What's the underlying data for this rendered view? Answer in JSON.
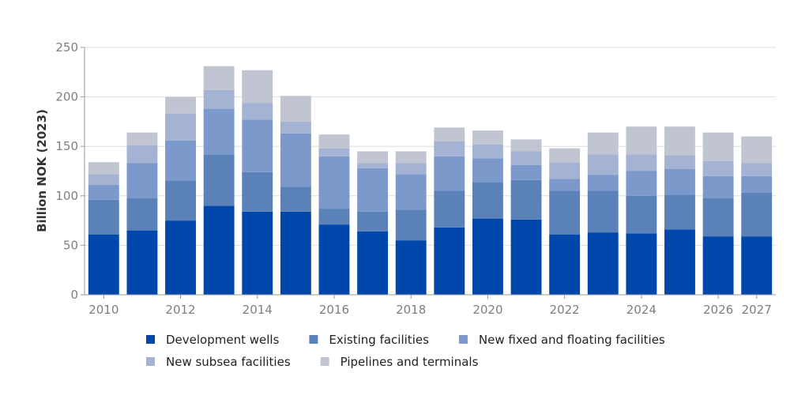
{
  "chart_data": {
    "type": "bar",
    "stacked": true,
    "title": "",
    "xlabel": "",
    "ylabel": "Billion NOK (2023)",
    "ylim": [
      0,
      250
    ],
    "yticks": [
      0,
      50,
      100,
      150,
      200,
      250
    ],
    "grid": true,
    "legend_position": "bottom",
    "categories": [
      "2010",
      "2011",
      "2012",
      "2013",
      "2014",
      "2015",
      "2016",
      "2017",
      "2018",
      "2019",
      "2020",
      "2021",
      "2022",
      "2023",
      "2024",
      "2025",
      "2026",
      "2027"
    ],
    "xtick_labels": [
      "2010",
      "",
      "2012",
      "",
      "2014",
      "",
      "2016",
      "",
      "2018",
      "",
      "2020",
      "",
      "2022",
      "",
      "2024",
      "",
      "2026",
      "2027"
    ],
    "series": [
      {
        "name": "Development wells",
        "color": "#0047ab",
        "values": [
          61,
          65,
          75,
          90,
          84,
          84,
          71,
          64,
          55,
          68,
          77,
          76,
          61,
          63,
          62,
          66,
          59,
          59
        ]
      },
      {
        "name": "Existing facilities",
        "color": "#5b81b9",
        "values": [
          35,
          33,
          40,
          52,
          40,
          25,
          16,
          20,
          31,
          37,
          37,
          40,
          44,
          42,
          38,
          35,
          39,
          44
        ]
      },
      {
        "name": "New fixed and floating facilities",
        "color": "#7b9acb",
        "values": [
          15,
          35,
          41,
          46,
          53,
          54,
          53,
          44,
          36,
          35,
          24,
          15,
          12,
          16,
          25,
          26,
          22,
          17
        ]
      },
      {
        "name": "New subsea facilities",
        "color": "#a4b3d3",
        "values": [
          11,
          18,
          27,
          19,
          17,
          12,
          8,
          5,
          11,
          15,
          14,
          14,
          17,
          21,
          17,
          14,
          15,
          13
        ]
      },
      {
        "name": "Pipelines and terminals",
        "color": "#c0c5d1",
        "values": [
          12,
          13,
          17,
          24,
          33,
          26,
          14,
          12,
          12,
          14,
          14,
          12,
          14,
          22,
          28,
          29,
          29,
          27
        ]
      }
    ]
  }
}
